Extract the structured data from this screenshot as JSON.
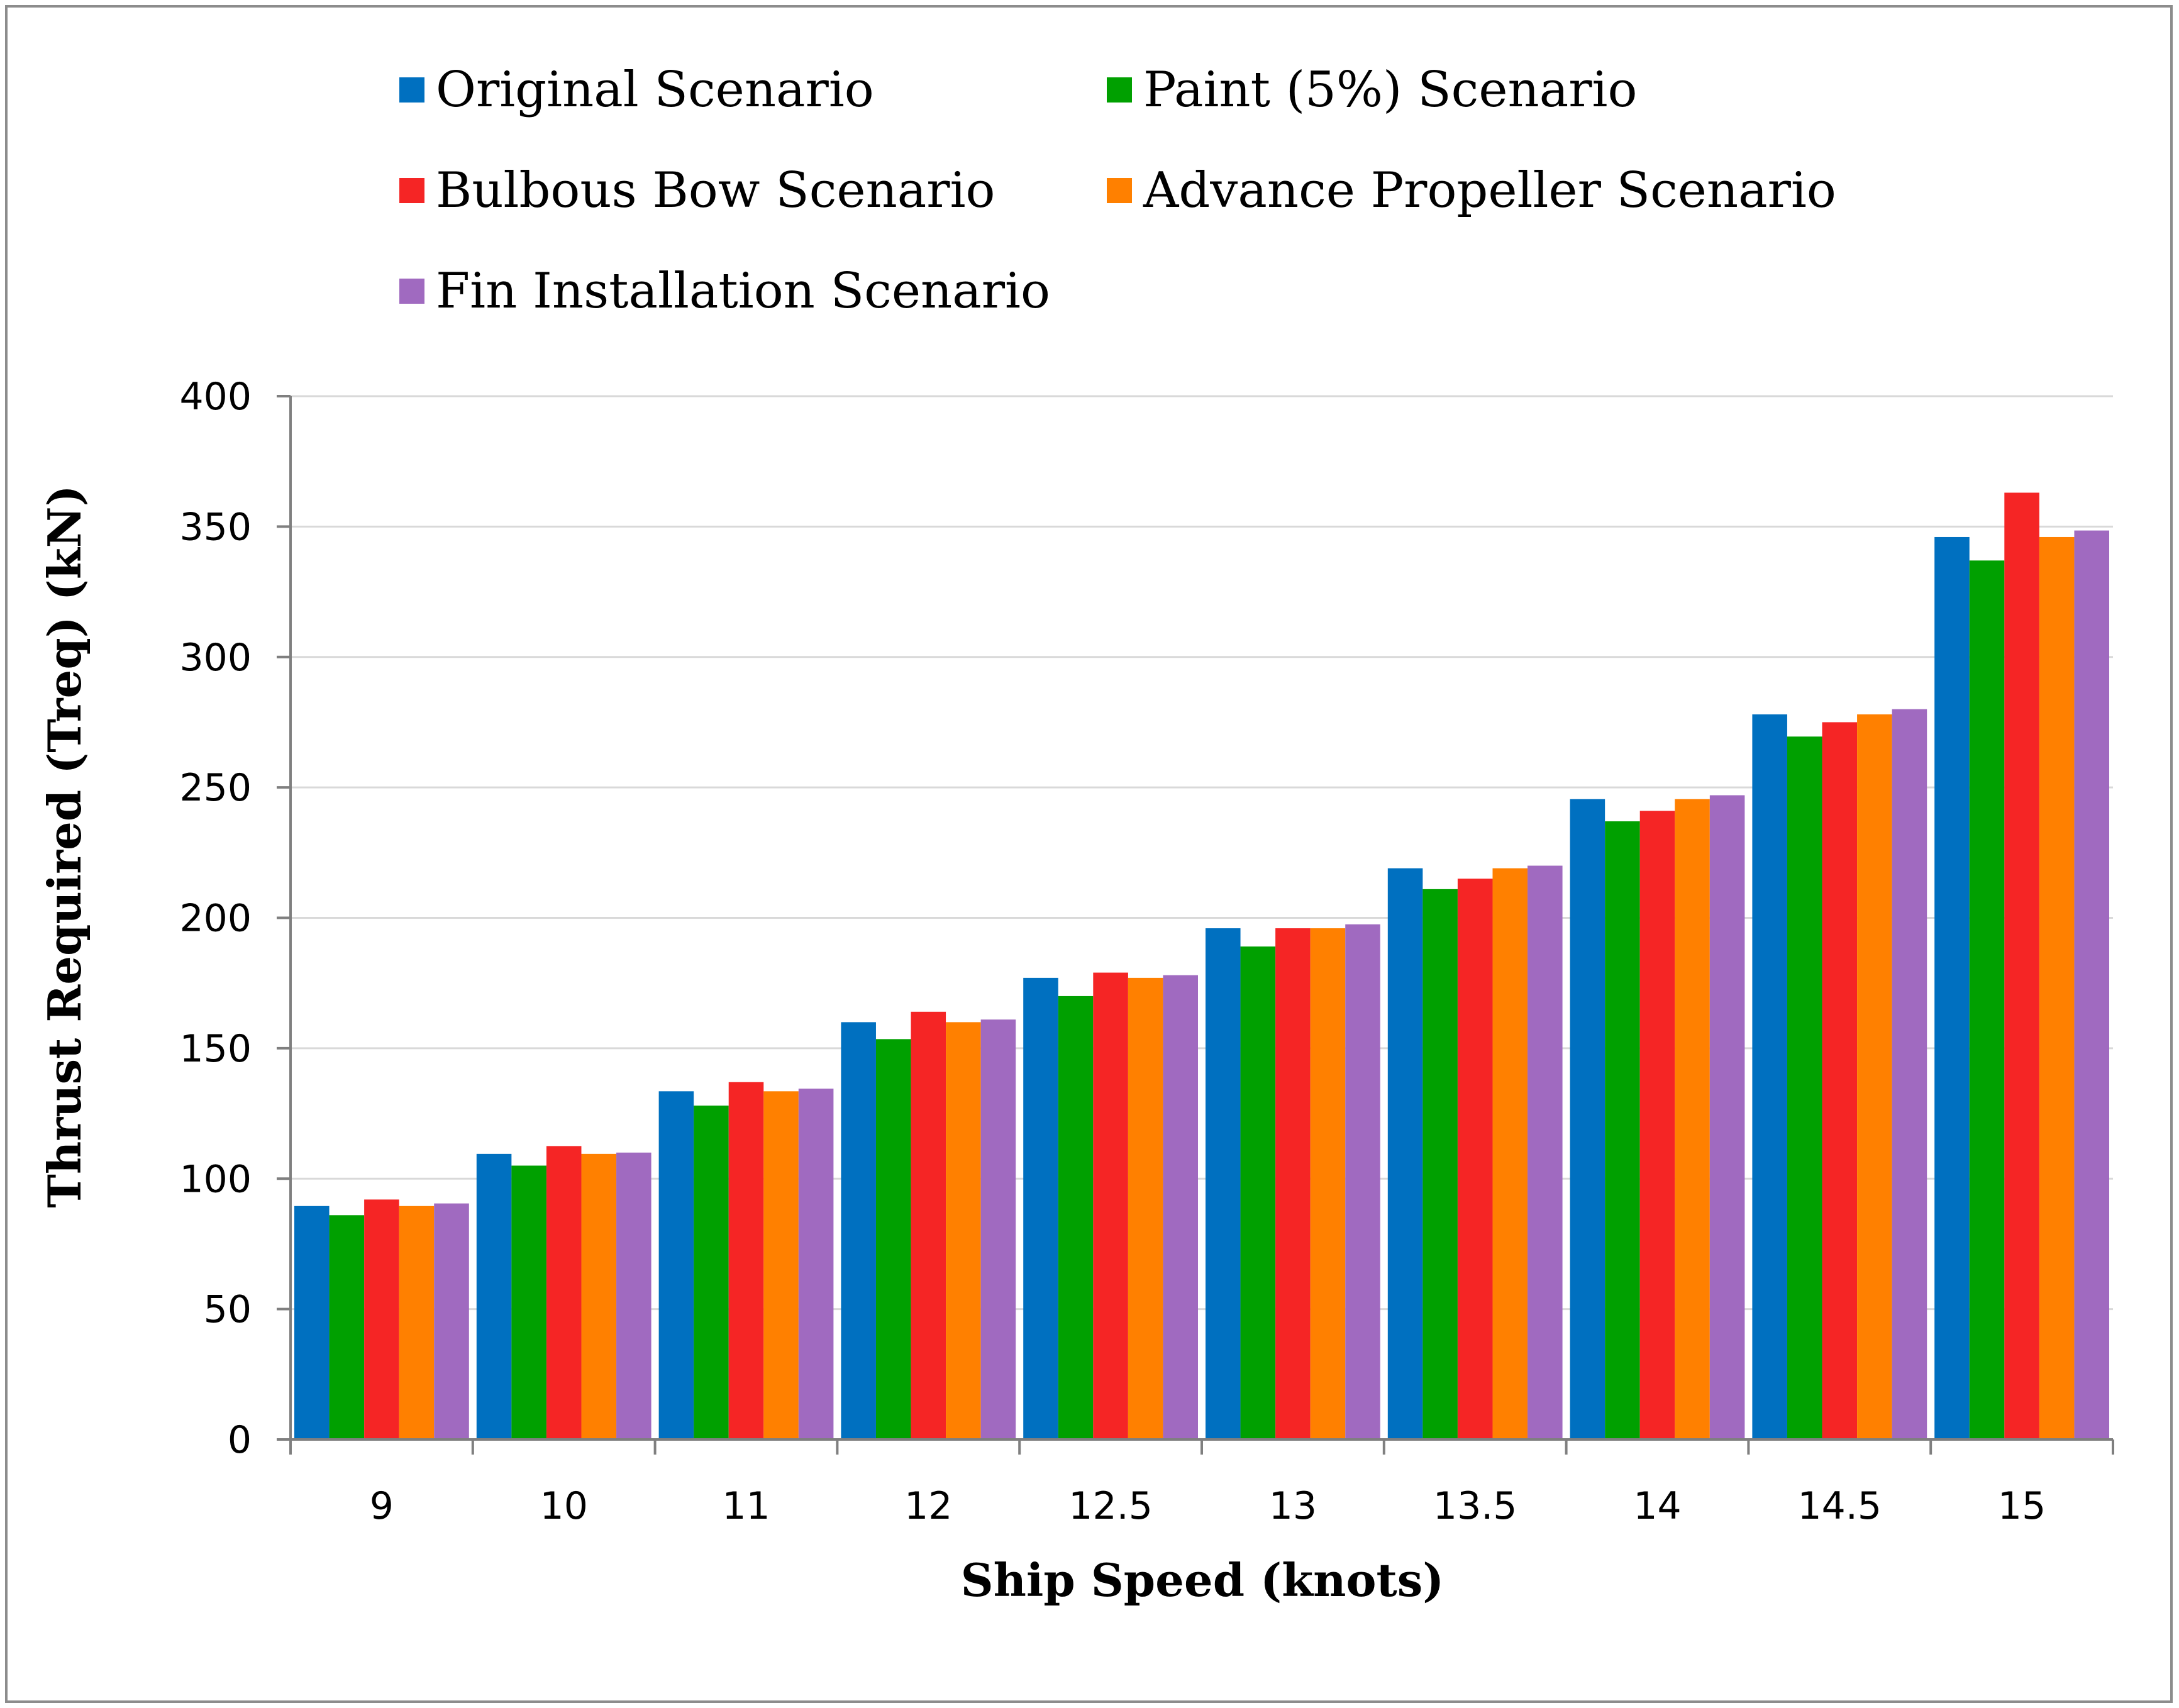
{
  "chart_data": {
    "type": "bar",
    "xlabel": "Ship Speed (knots)",
    "ylabel": "Thrust Required (Treq) (kN)",
    "categories": [
      "9",
      "10",
      "11",
      "12",
      "12.5",
      "13",
      "13.5",
      "14",
      "14.5",
      "15"
    ],
    "ylim": [
      0,
      400
    ],
    "yticks": [
      0,
      50,
      100,
      150,
      200,
      250,
      300,
      350,
      400
    ],
    "grid": true,
    "legend_position": "top",
    "series": [
      {
        "name": "Original Scenario",
        "color": "#0070c0",
        "values": [
          89.5,
          109.5,
          133.5,
          160,
          177,
          196,
          219,
          245.5,
          278,
          346
        ]
      },
      {
        "name": "Paint (5%) Scenario",
        "color": "#00a000",
        "values": [
          86,
          105,
          128,
          153.5,
          170,
          189,
          211,
          237,
          269.5,
          337
        ]
      },
      {
        "name": "Bulbous Bow Scenario",
        "color": "#f52525",
        "values": [
          92,
          112.5,
          137,
          164,
          179,
          196,
          215,
          241,
          275,
          363
        ]
      },
      {
        "name": "Advance Propeller Scenario",
        "color": "#ff8000",
        "values": [
          89.5,
          109.5,
          133.5,
          160,
          177,
          196,
          219,
          245.5,
          278,
          346
        ]
      },
      {
        "name": "Fin Installation Scenario",
        "color": "#a06ac0",
        "values": [
          90.5,
          110,
          134.5,
          161,
          178,
          197.5,
          220,
          247,
          280,
          348.5
        ]
      }
    ]
  }
}
